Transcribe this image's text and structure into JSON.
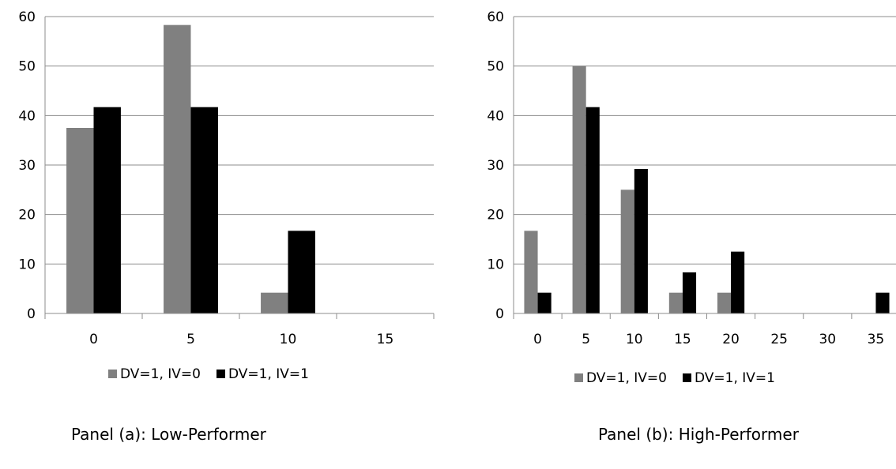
{
  "chart_data": [
    {
      "type": "bar",
      "caption": "Panel (a): Low-Performer",
      "categories": [
        "0",
        "5",
        "10",
        "15"
      ],
      "ylim": [
        0,
        60
      ],
      "yticks": [
        0,
        10,
        20,
        30,
        40,
        50,
        60
      ],
      "grid": true,
      "legend_position": "bottom",
      "series": [
        {
          "name": "DV=1, IV=0",
          "color": "#808080",
          "values": [
            37.5,
            58.3,
            4.2,
            0
          ]
        },
        {
          "name": "DV=1, IV=1",
          "color": "#000000",
          "values": [
            41.7,
            41.7,
            16.7,
            0
          ]
        }
      ]
    },
    {
      "type": "bar",
      "caption": "Panel (b): High-Performer",
      "categories": [
        "0",
        "5",
        "10",
        "15",
        "20",
        "25",
        "30",
        "35"
      ],
      "ylim": [
        0,
        60
      ],
      "yticks": [
        0,
        10,
        20,
        30,
        40,
        50,
        60
      ],
      "grid": true,
      "legend_position": "bottom",
      "series": [
        {
          "name": "DV=1, IV=0",
          "color": "#808080",
          "values": [
            16.7,
            50,
            25,
            4.2,
            4.2,
            0,
            0,
            0
          ]
        },
        {
          "name": "DV=1, IV=1",
          "color": "#000000",
          "values": [
            4.2,
            41.7,
            29.2,
            8.3,
            12.5,
            0,
            0,
            4.2
          ]
        }
      ]
    }
  ]
}
